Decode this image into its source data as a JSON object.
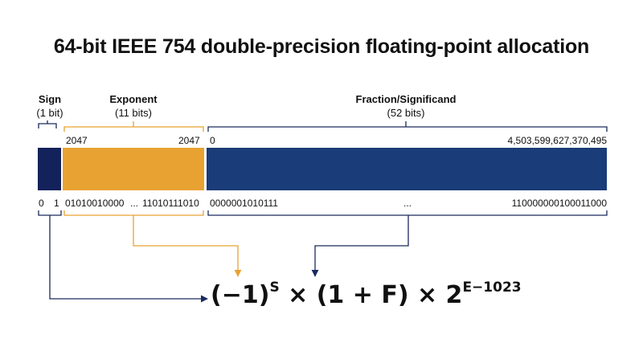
{
  "title": "64-bit IEEE 754 double-precision floating-point allocation",
  "segments": {
    "sign": {
      "name": "Sign",
      "bits": "(1 bit)",
      "low": "0",
      "high": "1",
      "color": "#13225a"
    },
    "exponent": {
      "name": "Exponent",
      "bits": "(11 bits)",
      "range_min": "2047",
      "range_max": "2047",
      "example_left": "01010010000",
      "ellipsis": "...",
      "example_right": "11010111010",
      "color": "#e8a232"
    },
    "fraction": {
      "name": "Fraction/Significand",
      "bits": "(52 bits)",
      "range_min": "0",
      "range_max": "4,503,599,627,370,495",
      "example_left": "0000001010111",
      "ellipsis": "...",
      "example_right": "110000000100011000",
      "color": "#1a3c78"
    }
  },
  "formula": {
    "base": "(−1)",
    "sign_exp": "S",
    "middle": " × (1 + F) × 2",
    "power": "E−1023"
  }
}
